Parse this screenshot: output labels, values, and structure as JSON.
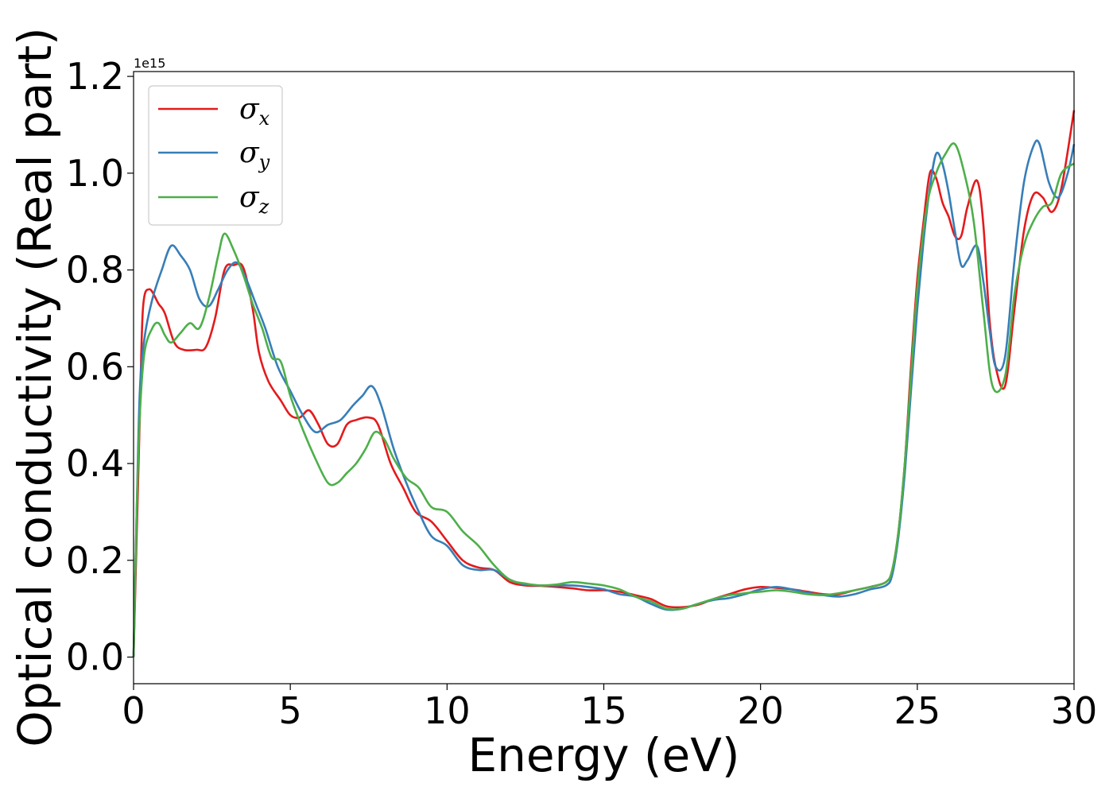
{
  "chart_data": {
    "type": "line",
    "title": "",
    "xlabel": "Energy (eV)",
    "ylabel": "Optical conductivity (Real part)",
    "y_offset_label": "1e15",
    "xlim": [
      0,
      30
    ],
    "ylim": [
      -0.055,
      1.21
    ],
    "xticks": [
      0,
      5,
      10,
      15,
      20,
      25,
      30
    ],
    "xtick_labels": [
      "0",
      "5",
      "10",
      "15",
      "20",
      "25",
      "30"
    ],
    "yticks": [
      0.0,
      0.2,
      0.4,
      0.6,
      0.8,
      1.0,
      1.2
    ],
    "ytick_labels": [
      "0.0",
      "0.2",
      "0.4",
      "0.6",
      "0.8",
      "1.0",
      "1.2"
    ],
    "y_scale_note": "values in units of 1e15",
    "grid": false,
    "legend_position": "top-left",
    "series": [
      {
        "name": "σ",
        "subscript": "x",
        "color": "#e41a1c",
        "x": [
          0,
          0.1,
          0.2,
          0.3,
          0.5,
          0.8,
          1.0,
          1.3,
          1.6,
          2.0,
          2.3,
          2.6,
          2.9,
          3.2,
          3.5,
          3.8,
          4.0,
          4.3,
          4.7,
          5.0,
          5.3,
          5.6,
          5.9,
          6.2,
          6.5,
          6.8,
          7.1,
          7.5,
          7.8,
          8.2,
          8.6,
          9.0,
          9.5,
          10.0,
          10.5,
          11.0,
          11.5,
          12.0,
          12.5,
          13.0,
          13.5,
          14.0,
          14.5,
          15.0,
          15.5,
          16.0,
          16.5,
          17.0,
          17.5,
          18.0,
          18.5,
          19.0,
          19.5,
          20.0,
          20.5,
          21.0,
          21.5,
          22.0,
          22.5,
          23.0,
          23.5,
          24.0,
          24.2,
          24.4,
          24.6,
          24.8,
          25.0,
          25.2,
          25.4,
          25.6,
          25.8,
          26.0,
          26.2,
          26.4,
          26.6,
          26.9,
          27.1,
          27.3,
          27.5,
          27.8,
          28.1,
          28.4,
          28.7,
          29.0,
          29.3,
          29.6,
          30.0
        ],
        "y": [
          0.0,
          0.25,
          0.5,
          0.72,
          0.76,
          0.73,
          0.71,
          0.65,
          0.635,
          0.635,
          0.64,
          0.7,
          0.8,
          0.81,
          0.805,
          0.72,
          0.63,
          0.57,
          0.53,
          0.5,
          0.495,
          0.51,
          0.48,
          0.44,
          0.44,
          0.48,
          0.49,
          0.495,
          0.48,
          0.4,
          0.35,
          0.3,
          0.28,
          0.24,
          0.2,
          0.185,
          0.18,
          0.155,
          0.148,
          0.147,
          0.145,
          0.142,
          0.138,
          0.138,
          0.135,
          0.128,
          0.12,
          0.105,
          0.103,
          0.108,
          0.12,
          0.13,
          0.14,
          0.145,
          0.143,
          0.14,
          0.135,
          0.13,
          0.13,
          0.138,
          0.145,
          0.155,
          0.18,
          0.26,
          0.4,
          0.6,
          0.78,
          0.9,
          1.0,
          0.99,
          0.94,
          0.91,
          0.87,
          0.87,
          0.93,
          0.985,
          0.9,
          0.7,
          0.6,
          0.56,
          0.72,
          0.88,
          0.955,
          0.95,
          0.92,
          0.97,
          1.13
        ]
      },
      {
        "name": "σ",
        "subscript": "y",
        "color": "#377eb8",
        "x": [
          0,
          0.1,
          0.2,
          0.35,
          0.6,
          0.9,
          1.2,
          1.5,
          1.8,
          2.1,
          2.4,
          2.7,
          3.0,
          3.3,
          3.6,
          3.9,
          4.2,
          4.6,
          5.0,
          5.4,
          5.8,
          6.2,
          6.6,
          7.0,
          7.3,
          7.6,
          7.9,
          8.3,
          8.7,
          9.1,
          9.5,
          10.0,
          10.5,
          11.0,
          11.5,
          12.0,
          12.5,
          13.0,
          13.5,
          14.0,
          14.5,
          15.0,
          15.5,
          16.0,
          16.5,
          17.0,
          17.5,
          18.0,
          18.5,
          19.0,
          19.5,
          20.0,
          20.5,
          21.0,
          21.5,
          22.0,
          22.5,
          23.0,
          23.5,
          24.0,
          24.2,
          24.4,
          24.6,
          24.8,
          25.0,
          25.2,
          25.4,
          25.6,
          25.8,
          26.0,
          26.2,
          26.4,
          26.6,
          26.9,
          27.1,
          27.3,
          27.5,
          27.8,
          28.1,
          28.4,
          28.7,
          28.9,
          29.2,
          29.5,
          29.8,
          30.0
        ],
        "y": [
          0.0,
          0.3,
          0.55,
          0.66,
          0.74,
          0.8,
          0.85,
          0.83,
          0.8,
          0.74,
          0.725,
          0.76,
          0.8,
          0.815,
          0.78,
          0.73,
          0.68,
          0.6,
          0.55,
          0.5,
          0.465,
          0.48,
          0.49,
          0.52,
          0.54,
          0.56,
          0.52,
          0.43,
          0.36,
          0.3,
          0.25,
          0.23,
          0.19,
          0.18,
          0.18,
          0.16,
          0.15,
          0.148,
          0.148,
          0.148,
          0.145,
          0.14,
          0.13,
          0.125,
          0.11,
          0.098,
          0.1,
          0.11,
          0.118,
          0.122,
          0.13,
          0.14,
          0.145,
          0.14,
          0.133,
          0.128,
          0.125,
          0.13,
          0.14,
          0.148,
          0.17,
          0.25,
          0.38,
          0.55,
          0.72,
          0.86,
          0.97,
          1.04,
          1.02,
          0.96,
          0.88,
          0.81,
          0.82,
          0.85,
          0.78,
          0.68,
          0.6,
          0.62,
          0.82,
          0.98,
          1.055,
          1.06,
          0.98,
          0.95,
          1.0,
          1.06
        ]
      },
      {
        "name": "σ",
        "subscript": "z",
        "color": "#4daf4a",
        "x": [
          0,
          0.1,
          0.2,
          0.35,
          0.6,
          0.8,
          1.0,
          1.2,
          1.5,
          1.8,
          2.1,
          2.4,
          2.7,
          2.9,
          3.2,
          3.5,
          3.8,
          4.1,
          4.4,
          4.7,
          5.0,
          5.4,
          5.8,
          6.2,
          6.5,
          6.8,
          7.1,
          7.4,
          7.7,
          8.0,
          8.3,
          8.7,
          9.1,
          9.5,
          10.0,
          10.5,
          11.0,
          11.5,
          12.0,
          12.5,
          13.0,
          13.5,
          14.0,
          14.5,
          15.0,
          15.5,
          16.0,
          16.5,
          17.0,
          17.5,
          18.0,
          18.5,
          19.0,
          19.5,
          20.0,
          20.5,
          21.0,
          21.5,
          22.0,
          22.5,
          23.0,
          23.5,
          24.0,
          24.2,
          24.4,
          24.6,
          24.8,
          25.0,
          25.3,
          25.6,
          25.9,
          26.2,
          26.5,
          26.8,
          27.1,
          27.4,
          27.8,
          28.1,
          28.4,
          28.7,
          29.0,
          29.3,
          29.6,
          30.0
        ],
        "y": [
          0.0,
          0.3,
          0.5,
          0.63,
          0.68,
          0.69,
          0.665,
          0.65,
          0.67,
          0.69,
          0.68,
          0.74,
          0.83,
          0.875,
          0.84,
          0.79,
          0.73,
          0.68,
          0.62,
          0.61,
          0.54,
          0.47,
          0.41,
          0.36,
          0.36,
          0.38,
          0.4,
          0.43,
          0.465,
          0.45,
          0.41,
          0.37,
          0.35,
          0.31,
          0.3,
          0.26,
          0.23,
          0.19,
          0.16,
          0.152,
          0.148,
          0.15,
          0.155,
          0.152,
          0.148,
          0.14,
          0.125,
          0.115,
          0.1,
          0.1,
          0.11,
          0.12,
          0.128,
          0.132,
          0.135,
          0.138,
          0.135,
          0.13,
          0.128,
          0.132,
          0.138,
          0.145,
          0.155,
          0.18,
          0.26,
          0.4,
          0.58,
          0.76,
          0.93,
          1.0,
          1.04,
          1.06,
          1.0,
          0.9,
          0.72,
          0.56,
          0.58,
          0.75,
          0.85,
          0.9,
          0.93,
          0.94,
          1.0,
          1.02
        ]
      }
    ]
  }
}
